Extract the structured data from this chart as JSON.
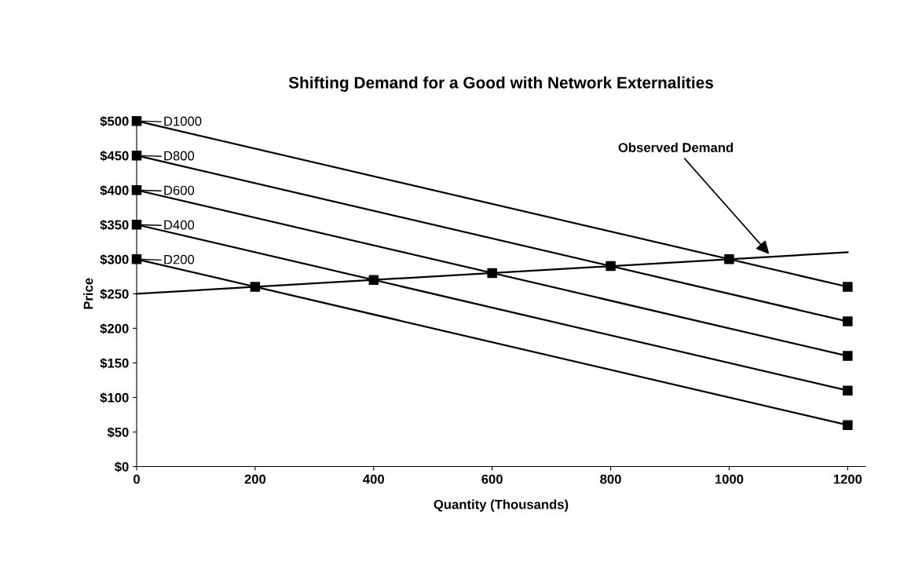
{
  "chart_data": {
    "type": "line",
    "title": "Shifting Demand for a Good with Network Externalities",
    "xlabel": "Quantity (Thousands)",
    "ylabel": "Price",
    "series": [
      {
        "name": "D1000",
        "color": "#000000",
        "x": [
          0,
          1200
        ],
        "values": [
          500,
          260
        ],
        "marker": "square"
      },
      {
        "name": "D800",
        "color": "#000000",
        "x": [
          0,
          1200
        ],
        "values": [
          450,
          210
        ],
        "marker": "square"
      },
      {
        "name": "D600",
        "color": "#000000",
        "x": [
          0,
          1200
        ],
        "values": [
          400,
          160
        ],
        "marker": "square"
      },
      {
        "name": "D400",
        "color": "#000000",
        "x": [
          0,
          1200
        ],
        "values": [
          350,
          110
        ],
        "marker": "square"
      },
      {
        "name": "D200",
        "color": "#000000",
        "x": [
          0,
          1200
        ],
        "values": [
          300,
          60
        ],
        "marker": "square"
      },
      {
        "color": "#000000",
        "x": [
          0,
          1200
        ],
        "values": [
          250,
          310
        ],
        "marker": "none"
      },
      {
        "type": "scatter",
        "color": "#000000",
        "x": [
          200,
          400,
          600,
          800,
          1000
        ],
        "values": [
          260,
          270,
          280,
          290,
          300
        ],
        "marker": "square"
      }
    ],
    "annotations": [
      {
        "text": "Observed Demand",
        "x": 1070,
        "y": 305
      }
    ],
    "xlim": [
      0,
      1230
    ],
    "xticks": [
      0,
      200,
      400,
      600,
      800,
      1000,
      1200
    ],
    "ylim": [
      0,
      500
    ],
    "yticks": [
      {
        "value": 0,
        "label": "$0"
      },
      {
        "value": 50,
        "label": "$50"
      },
      {
        "value": 100,
        "label": "$100"
      },
      {
        "value": 150,
        "label": "$150"
      },
      {
        "value": 200,
        "label": "$200"
      },
      {
        "value": 250,
        "label": "$250"
      },
      {
        "value": 300,
        "label": "$300"
      },
      {
        "value": 350,
        "label": "$350"
      },
      {
        "value": 400,
        "label": "$400"
      },
      {
        "value": 450,
        "label": "$450"
      },
      {
        "value": 500,
        "label": "$500"
      }
    ],
    "grid": false,
    "legend": "top left"
  }
}
